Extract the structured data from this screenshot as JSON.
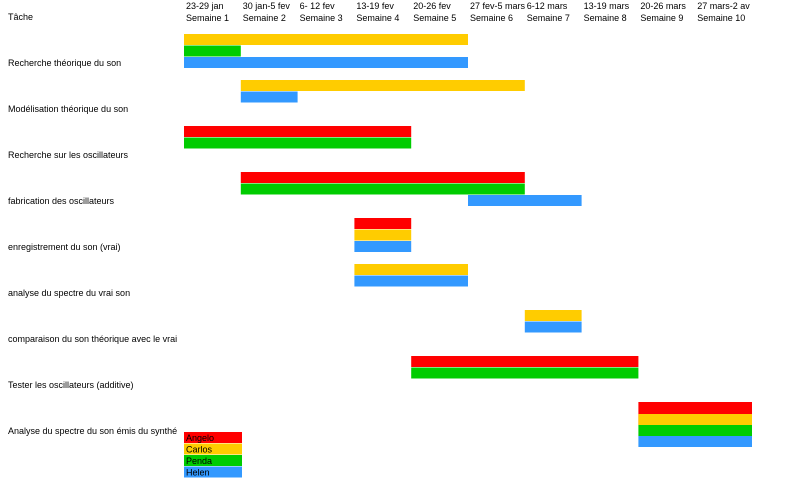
{
  "chart_data": {
    "type": "bar",
    "title": "",
    "task_header": "Tâche",
    "weeks": [
      {
        "dates": "23-29 jan",
        "label": "Semaine 1"
      },
      {
        "dates": "30 jan-5 fev",
        "label": "Semaine 2"
      },
      {
        "dates": "6- 12 fev",
        "label": "Semaine 3"
      },
      {
        "dates": "13-19 fev",
        "label": "Semaine 4"
      },
      {
        "dates": "20-26 fev",
        "label": "Semaine 5"
      },
      {
        "dates": "27 fev-5 mars",
        "label": "Semaine 6"
      },
      {
        "dates": "6-12 mars",
        "label": "Semaine 7"
      },
      {
        "dates": "13-19 mars",
        "label": "Semaine 8"
      },
      {
        "dates": "20-26 mars",
        "label": "Semaine 9"
      },
      {
        "dates": "27 mars-2 av",
        "label": "Semaine 10"
      }
    ],
    "people": [
      {
        "name": "Angelo",
        "color": "#ff0000"
      },
      {
        "name": "Carlos",
        "color": "#ffcc00"
      },
      {
        "name": "Penda",
        "color": "#00cc00"
      },
      {
        "name": "Helen",
        "color": "#3399ff"
      }
    ],
    "tasks": [
      {
        "name": "Recherche théorique du son",
        "bars": [
          {
            "person": "Carlos",
            "start_week": 1,
            "end_week": 5
          },
          {
            "person": "Penda",
            "start_week": 1,
            "end_week": 1
          },
          {
            "person": "Helen",
            "start_week": 1,
            "end_week": 5
          }
        ]
      },
      {
        "name": "Modélisation théorique du son",
        "bars": [
          {
            "person": "Carlos",
            "start_week": 2,
            "end_week": 6
          },
          {
            "person": "Helen",
            "start_week": 2,
            "end_week": 2
          }
        ]
      },
      {
        "name": "Recherche sur les oscillateurs",
        "bars": [
          {
            "person": "Angelo",
            "start_week": 1,
            "end_week": 4
          },
          {
            "person": "Penda",
            "start_week": 1,
            "end_week": 4
          }
        ]
      },
      {
        "name": "fabrication des oscillateurs",
        "bars": [
          {
            "person": "Angelo",
            "start_week": 2,
            "end_week": 6
          },
          {
            "person": "Penda",
            "start_week": 2,
            "end_week": 6
          },
          {
            "person": "Helen",
            "start_week": 6,
            "end_week": 7
          }
        ]
      },
      {
        "name": "enregistrement du son (vrai)",
        "bars": [
          {
            "person": "Angelo",
            "start_week": 4,
            "end_week": 4
          },
          {
            "person": "Carlos",
            "start_week": 4,
            "end_week": 4
          },
          {
            "person": "Helen",
            "start_week": 4,
            "end_week": 4
          }
        ]
      },
      {
        "name": "analyse du spectre du vrai son",
        "bars": [
          {
            "person": "Carlos",
            "start_week": 4,
            "end_week": 5
          },
          {
            "person": "Helen",
            "start_week": 4,
            "end_week": 5
          }
        ]
      },
      {
        "name": "comparaison du son théorique avec le vrai",
        "bars": [
          {
            "person": "Carlos",
            "start_week": 7,
            "end_week": 7
          },
          {
            "person": "Helen",
            "start_week": 7,
            "end_week": 7
          }
        ]
      },
      {
        "name": "Tester les oscillateurs (additive)",
        "bars": [
          {
            "person": "Angelo",
            "start_week": 5,
            "end_week": 8
          },
          {
            "person": "Penda",
            "start_week": 5,
            "end_week": 8
          }
        ]
      },
      {
        "name": "Analyse du spectre du son émis du synthé",
        "bars": [
          {
            "person": "Angelo",
            "start_week": 9,
            "end_week": 10
          },
          {
            "person": "Carlos",
            "start_week": 9,
            "end_week": 10
          },
          {
            "person": "Penda",
            "start_week": 9,
            "end_week": 10
          },
          {
            "person": "Helen",
            "start_week": 9,
            "end_week": 10
          }
        ]
      }
    ],
    "grid": false,
    "legend_position": "bottom-left"
  }
}
